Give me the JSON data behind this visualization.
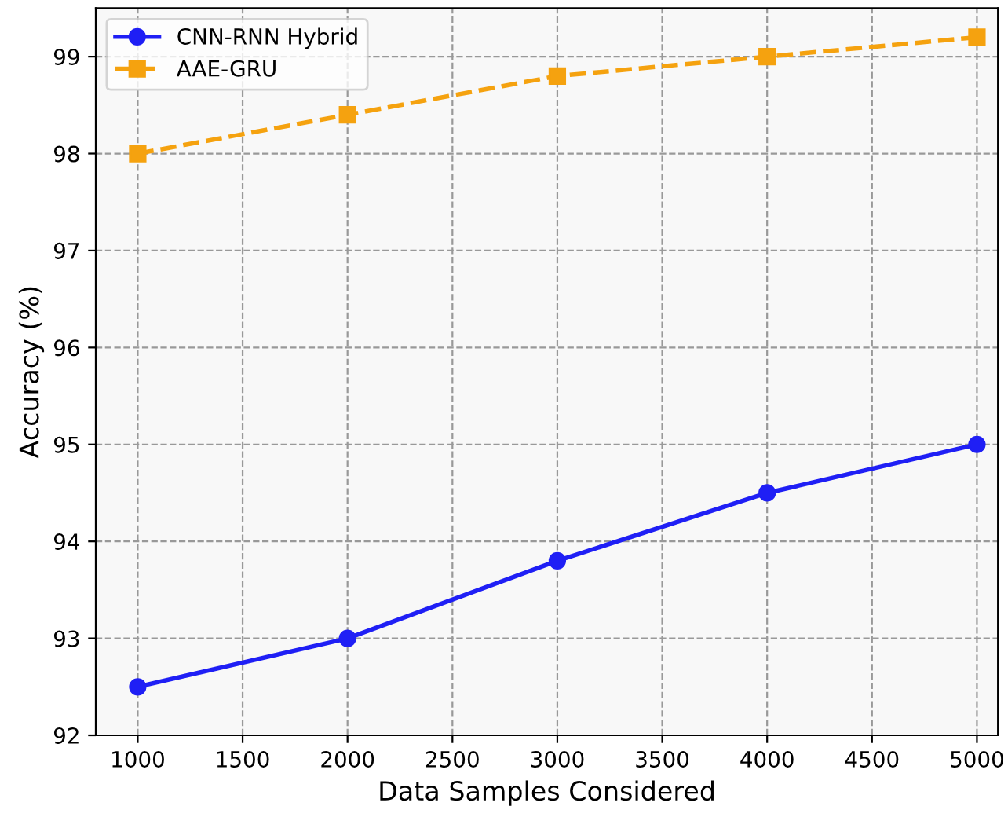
{
  "chart_data": {
    "type": "line",
    "xlabel": "Data Samples Considered",
    "ylabel": "Accuracy (%)",
    "x": [
      1000,
      2000,
      3000,
      4000,
      5000
    ],
    "series": [
      {
        "name": "CNN-RNN Hybrid",
        "color": "#1f1ff5",
        "values": [
          92.5,
          93.0,
          93.8,
          94.5,
          95.0
        ],
        "marker": "circle",
        "line_style": "solid"
      },
      {
        "name": "AAE-GRU",
        "color": "#f5a20f",
        "values": [
          98.0,
          98.4,
          98.8,
          99.0,
          99.2
        ],
        "marker": "square",
        "line_style": "dashed"
      }
    ],
    "xlim": [
      800,
      5100
    ],
    "xticks": [
      1000,
      1500,
      2000,
      2500,
      3000,
      3500,
      4000,
      4500,
      5000
    ],
    "ylim": [
      92,
      99.5
    ],
    "yticks": [
      92,
      93,
      94,
      95,
      96,
      97,
      98,
      99
    ],
    "grid": true,
    "legend": "top left"
  }
}
